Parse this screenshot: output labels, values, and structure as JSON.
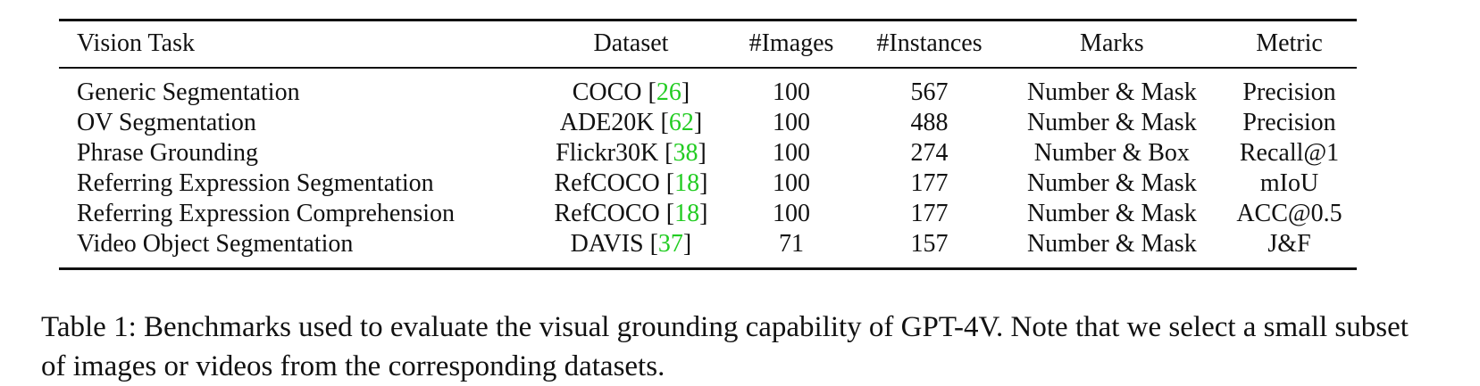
{
  "table": {
    "headers": [
      "Vision Task",
      "Dataset",
      "#Images",
      "#Instances",
      "Marks",
      "Metric"
    ],
    "rows": [
      {
        "task": "Generic Segmentation",
        "dataset": "COCO",
        "cite": "26",
        "images": "100",
        "instances": "567",
        "marks": "Number & Mask",
        "metric": "Precision"
      },
      {
        "task": "OV Segmentation",
        "dataset": "ADE20K",
        "cite": "62",
        "images": "100",
        "instances": "488",
        "marks": "Number & Mask",
        "metric": "Precision"
      },
      {
        "task": "Phrase Grounding",
        "dataset": "Flickr30K",
        "cite": "38",
        "images": "100",
        "instances": "274",
        "marks": "Number & Box",
        "metric": "Recall@1"
      },
      {
        "task": "Referring Expression Segmentation",
        "dataset": "RefCOCO",
        "cite": "18",
        "images": "100",
        "instances": "177",
        "marks": "Number & Mask",
        "metric": "mIoU"
      },
      {
        "task": "Referring Expression Comprehension",
        "dataset": "RefCOCO",
        "cite": "18",
        "images": "100",
        "instances": "177",
        "marks": "Number & Mask",
        "metric": "ACC@0.5"
      },
      {
        "task": "Video Object Segmentation",
        "dataset": "DAVIS",
        "cite": "37",
        "images": "71",
        "instances": "157",
        "marks": "Number & Mask",
        "metric": "J&F"
      }
    ]
  },
  "caption": "Table 1: Benchmarks used to evaluate the visual grounding capability of GPT-4V. Note that we select a small subset of images or videos from the corresponding datasets.",
  "colors": {
    "citation": "#22cc22",
    "text": "#111111"
  }
}
